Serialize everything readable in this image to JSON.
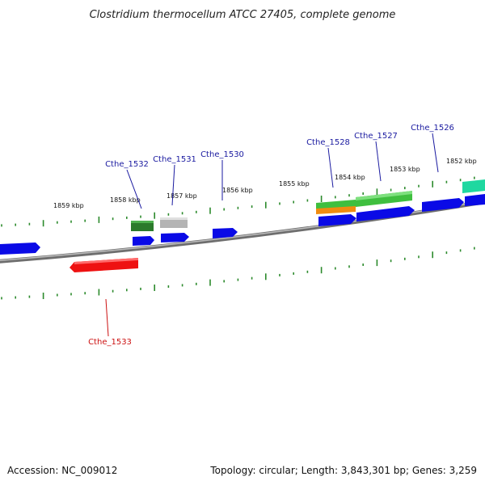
{
  "title": "Clostridium thermocellum ATCC 27405, complete genome",
  "footer": {
    "accession": "Accession: NC_009012",
    "summary": "Topology: circular; Length: 3,843,301 bp; Genes: 3,259"
  },
  "colors": {
    "cds": "#0a0ae6",
    "rrna": "#2e9b2e",
    "rrna_light": "#5fd35f",
    "trna": "#2b7a2b",
    "misc": "#b4b4b4",
    "orange": "#f08c10",
    "teal": "#1fd8a0",
    "red_gene": "#ee1111",
    "backbone": "#888888",
    "ticks": "#2c8a2c",
    "label_forward": "#1a1aa0",
    "label_reverse": "#cc1111"
  },
  "kbp_labels": [
    "1859 kbp",
    "1858 kbp",
    "1857 kbp",
    "1856 kbp",
    "1855 kbp",
    "1854 kbp",
    "1853 kbp",
    "1852 kbp"
  ],
  "gene_labels": [
    {
      "name": "Cthe_1532",
      "strand": "forward"
    },
    {
      "name": "Cthe_1531",
      "strand": "forward"
    },
    {
      "name": "Cthe_1530",
      "strand": "forward"
    },
    {
      "name": "Cthe_1528",
      "strand": "forward"
    },
    {
      "name": "Cthe_1527",
      "strand": "forward"
    },
    {
      "name": "Cthe_1526",
      "strand": "forward"
    },
    {
      "name": "Cthe_1533",
      "strand": "reverse"
    }
  ]
}
